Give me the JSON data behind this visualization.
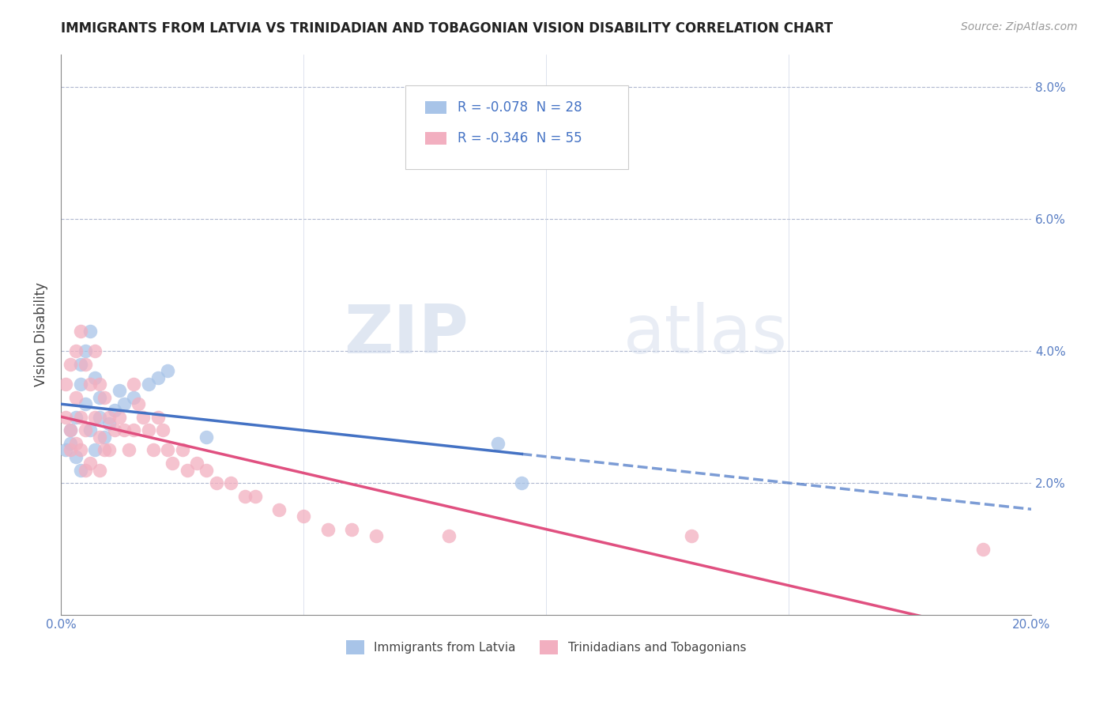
{
  "title": "IMMIGRANTS FROM LATVIA VS TRINIDADIAN AND TOBAGONIAN VISION DISABILITY CORRELATION CHART",
  "source": "Source: ZipAtlas.com",
  "ylabel": "Vision Disability",
  "legend_label1": "Immigrants from Latvia",
  "legend_label2": "Trinidadians and Tobagonians",
  "r1": -0.078,
  "n1": 28,
  "r2": -0.346,
  "n2": 55,
  "xlim": [
    0.0,
    0.2
  ],
  "ylim": [
    0.0,
    0.085
  ],
  "xticks": [
    0.0,
    0.05,
    0.1,
    0.15,
    0.2
  ],
  "yticks": [
    0.0,
    0.02,
    0.04,
    0.06,
    0.08
  ],
  "xticklabels": [
    "0.0%",
    "",
    "",
    "",
    "20.0%"
  ],
  "yticklabels_left": [
    "",
    "",
    "",
    "",
    ""
  ],
  "yticklabels_right": [
    "",
    "2.0%",
    "4.0%",
    "6.0%",
    "8.0%"
  ],
  "color1": "#a8c4e8",
  "color2": "#f2afc0",
  "line_color1": "#4472c4",
  "line_color2": "#e05080",
  "background": "#ffffff",
  "watermark_zip": "ZIP",
  "watermark_atlas": "atlas",
  "scatter1_x": [
    0.001,
    0.002,
    0.002,
    0.003,
    0.003,
    0.004,
    0.004,
    0.004,
    0.005,
    0.005,
    0.006,
    0.006,
    0.007,
    0.007,
    0.008,
    0.008,
    0.009,
    0.01,
    0.011,
    0.012,
    0.013,
    0.015,
    0.018,
    0.02,
    0.022,
    0.03,
    0.09,
    0.095
  ],
  "scatter1_y": [
    0.025,
    0.026,
    0.028,
    0.03,
    0.024,
    0.035,
    0.038,
    0.022,
    0.04,
    0.032,
    0.043,
    0.028,
    0.036,
    0.025,
    0.033,
    0.03,
    0.027,
    0.029,
    0.031,
    0.034,
    0.032,
    0.033,
    0.035,
    0.036,
    0.037,
    0.027,
    0.026,
    0.02
  ],
  "scatter2_x": [
    0.001,
    0.001,
    0.002,
    0.002,
    0.002,
    0.003,
    0.003,
    0.003,
    0.004,
    0.004,
    0.004,
    0.005,
    0.005,
    0.005,
    0.006,
    0.006,
    0.007,
    0.007,
    0.008,
    0.008,
    0.008,
    0.009,
    0.009,
    0.01,
    0.01,
    0.011,
    0.012,
    0.013,
    0.014,
    0.015,
    0.015,
    0.016,
    0.017,
    0.018,
    0.019,
    0.02,
    0.021,
    0.022,
    0.023,
    0.025,
    0.026,
    0.028,
    0.03,
    0.032,
    0.035,
    0.038,
    0.04,
    0.045,
    0.05,
    0.055,
    0.06,
    0.065,
    0.08,
    0.13,
    0.19
  ],
  "scatter2_y": [
    0.03,
    0.035,
    0.038,
    0.028,
    0.025,
    0.04,
    0.033,
    0.026,
    0.043,
    0.03,
    0.025,
    0.038,
    0.028,
    0.022,
    0.035,
    0.023,
    0.04,
    0.03,
    0.035,
    0.027,
    0.022,
    0.033,
    0.025,
    0.03,
    0.025,
    0.028,
    0.03,
    0.028,
    0.025,
    0.035,
    0.028,
    0.032,
    0.03,
    0.028,
    0.025,
    0.03,
    0.028,
    0.025,
    0.023,
    0.025,
    0.022,
    0.023,
    0.022,
    0.02,
    0.02,
    0.018,
    0.018,
    0.016,
    0.015,
    0.013,
    0.013,
    0.012,
    0.012,
    0.012,
    0.01
  ]
}
